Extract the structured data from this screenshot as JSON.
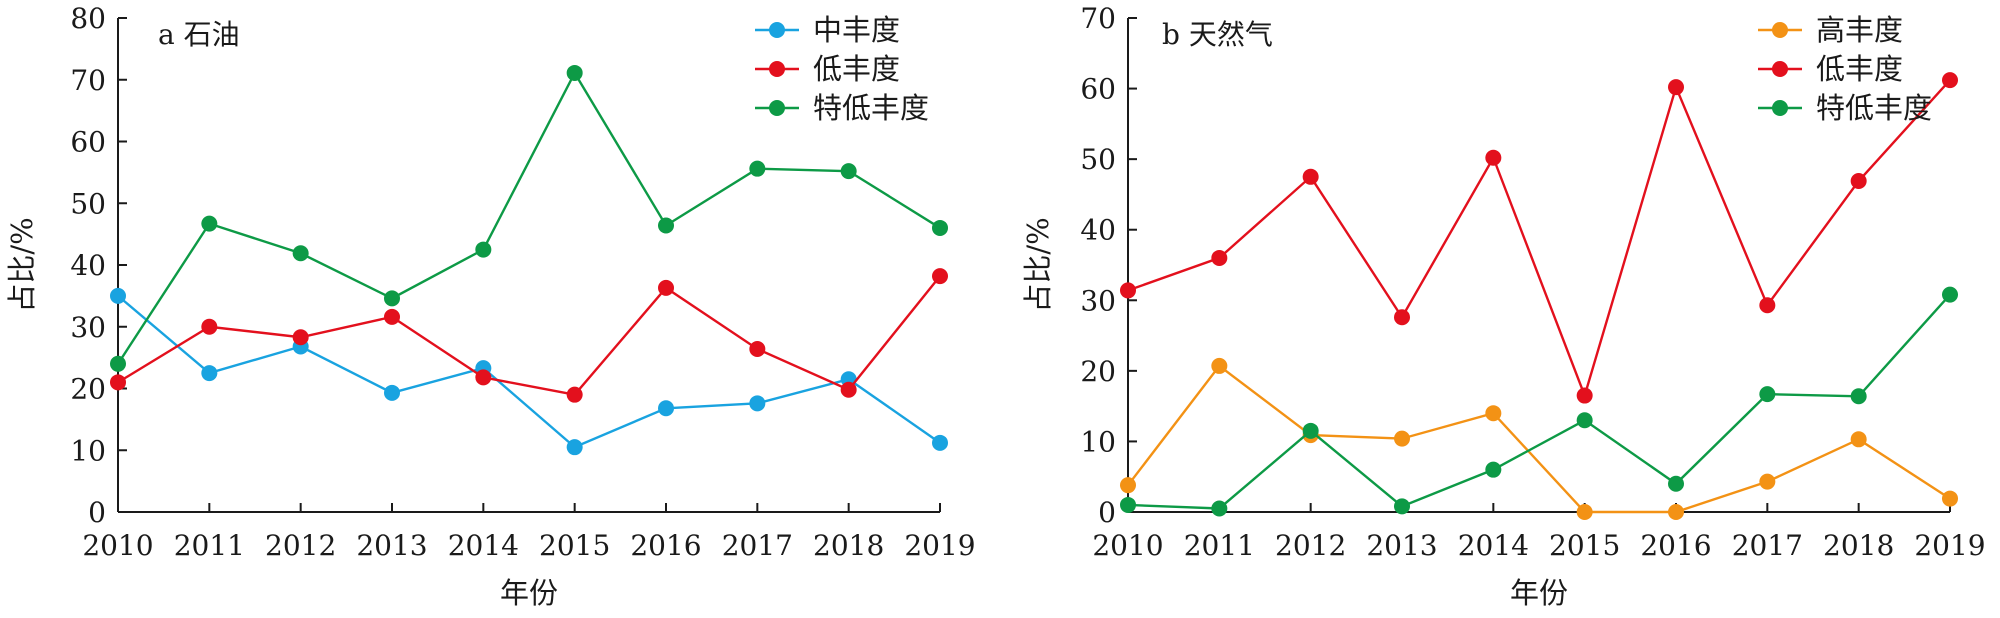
{
  "chart_data": [
    {
      "panel": "a",
      "type": "line",
      "title": "a 石油",
      "xlabel": "年份",
      "ylabel": "占比/%",
      "categories": [
        "2010",
        "2011",
        "2012",
        "2013",
        "2014",
        "2015",
        "2016",
        "2017",
        "2018",
        "2019"
      ],
      "ylim": [
        0,
        80
      ],
      "yticks": [
        0,
        10,
        20,
        30,
        40,
        50,
        60,
        70,
        80
      ],
      "legend": "top-right",
      "grid": false,
      "series": [
        {
          "name": "中丰度",
          "color": "#19a3e0",
          "values": [
            35.0,
            22.5,
            26.8,
            19.3,
            23.3,
            10.5,
            16.8,
            17.6,
            21.5,
            11.2
          ]
        },
        {
          "name": "低丰度",
          "color": "#e3101d",
          "values": [
            21.0,
            30.0,
            28.3,
            31.6,
            21.8,
            19.0,
            36.3,
            26.4,
            19.8,
            38.2
          ]
        },
        {
          "name": "特低丰度",
          "color": "#0d9a46",
          "values": [
            24.0,
            46.7,
            41.9,
            34.6,
            42.5,
            71.1,
            46.4,
            55.6,
            55.2,
            46.0
          ]
        }
      ]
    },
    {
      "panel": "b",
      "type": "line",
      "title": "b 天然气",
      "xlabel": "年份",
      "ylabel": "占比/%",
      "categories": [
        "2010",
        "2011",
        "2012",
        "2013",
        "2014",
        "2015",
        "2016",
        "2017",
        "2018",
        "2019"
      ],
      "ylim": [
        0,
        70
      ],
      "yticks": [
        0,
        10,
        20,
        30,
        40,
        50,
        60,
        70
      ],
      "legend": "top-right",
      "grid": false,
      "series": [
        {
          "name": "高丰度",
          "color": "#f39215",
          "values": [
            3.8,
            20.7,
            10.9,
            10.4,
            14.0,
            0.0,
            0.0,
            4.3,
            10.3,
            1.9
          ]
        },
        {
          "name": "低丰度",
          "color": "#e3101d",
          "values": [
            31.4,
            36.0,
            47.5,
            27.6,
            50.2,
            16.5,
            60.2,
            29.3,
            46.9,
            61.2
          ]
        },
        {
          "name": "特低丰度",
          "color": "#0d9a46",
          "values": [
            1.0,
            0.5,
            11.5,
            0.8,
            6.0,
            13.0,
            4.0,
            16.7,
            16.4,
            30.8
          ]
        }
      ]
    }
  ]
}
